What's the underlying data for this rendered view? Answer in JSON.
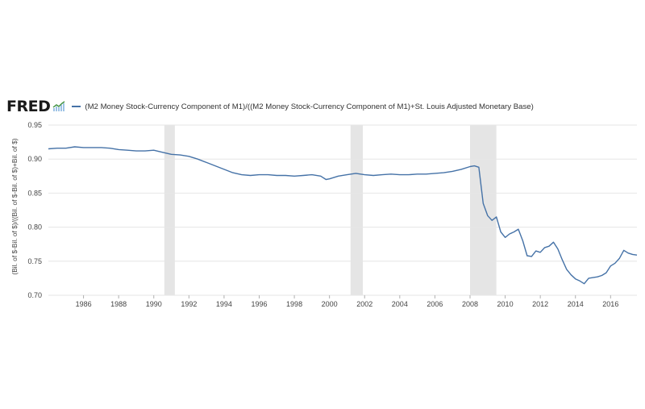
{
  "header": {
    "logo_text": "FRED",
    "logo_icon": "fred-line-chart-icon",
    "legend_label": "(M2 Money Stock-Currency Component of M1)/((M2 Money Stock-Currency Component of M1)+St. Louis Adjusted Monetary Base)"
  },
  "colors": {
    "series": "#4572a7",
    "recession": "#e5e5e5",
    "grid": "#e6e6e6"
  },
  "chart_data": {
    "type": "line",
    "title": "",
    "xlabel": "",
    "ylabel": "(Bil. of $-Bil. of $)/((Bil. of $-Bil. of $)+Bil. of $)",
    "xlim": [
      1984.0,
      2017.5
    ],
    "ylim": [
      0.7,
      0.95
    ],
    "x_ticks": [
      1986,
      1988,
      1990,
      1992,
      1994,
      1996,
      1998,
      2000,
      2002,
      2004,
      2006,
      2008,
      2010,
      2012,
      2014,
      2016
    ],
    "y_ticks": [
      "0.70",
      "0.75",
      "0.80",
      "0.85",
      "0.90",
      "0.95"
    ],
    "grid": true,
    "recessions": [
      [
        1990.6,
        1991.2
      ],
      [
        2001.2,
        2001.9
      ],
      [
        2008.0,
        2009.5
      ]
    ],
    "series": [
      {
        "name": "(M2 Money Stock-Currency Component of M1)/((M2 Money Stock-Currency Component of M1)+St. Louis Adjusted Monetary Base)",
        "x": [
          1984.0,
          1984.5,
          1985.0,
          1985.5,
          1986.0,
          1986.5,
          1987.0,
          1987.5,
          1988.0,
          1988.5,
          1989.0,
          1989.5,
          1990.0,
          1990.5,
          1991.0,
          1991.5,
          1992.0,
          1992.5,
          1993.0,
          1993.5,
          1994.0,
          1994.5,
          1995.0,
          1995.5,
          1996.0,
          1996.5,
          1997.0,
          1997.5,
          1998.0,
          1998.5,
          1999.0,
          1999.5,
          1999.8,
          2000.0,
          2000.5,
          2001.0,
          2001.5,
          2002.0,
          2002.5,
          2003.0,
          2003.5,
          2004.0,
          2004.5,
          2005.0,
          2005.5,
          2006.0,
          2006.5,
          2007.0,
          2007.5,
          2008.0,
          2008.25,
          2008.5,
          2008.75,
          2009.0,
          2009.25,
          2009.5,
          2009.75,
          2010.0,
          2010.25,
          2010.5,
          2010.75,
          2011.0,
          2011.25,
          2011.5,
          2011.75,
          2012.0,
          2012.25,
          2012.5,
          2012.75,
          2013.0,
          2013.25,
          2013.5,
          2013.75,
          2014.0,
          2014.25,
          2014.5,
          2014.75,
          2015.0,
          2015.25,
          2015.5,
          2015.75,
          2016.0,
          2016.25,
          2016.5,
          2016.75,
          2017.0,
          2017.25,
          2017.5
        ],
        "values": [
          0.915,
          0.916,
          0.916,
          0.918,
          0.917,
          0.917,
          0.917,
          0.916,
          0.914,
          0.913,
          0.912,
          0.912,
          0.913,
          0.91,
          0.907,
          0.906,
          0.904,
          0.9,
          0.895,
          0.89,
          0.885,
          0.88,
          0.877,
          0.876,
          0.877,
          0.877,
          0.876,
          0.876,
          0.875,
          0.876,
          0.877,
          0.875,
          0.87,
          0.871,
          0.875,
          0.877,
          0.879,
          0.877,
          0.876,
          0.877,
          0.878,
          0.877,
          0.877,
          0.878,
          0.878,
          0.879,
          0.88,
          0.882,
          0.885,
          0.889,
          0.89,
          0.888,
          0.835,
          0.817,
          0.81,
          0.815,
          0.793,
          0.785,
          0.79,
          0.793,
          0.797,
          0.78,
          0.758,
          0.757,
          0.765,
          0.763,
          0.77,
          0.772,
          0.778,
          0.768,
          0.752,
          0.738,
          0.73,
          0.724,
          0.721,
          0.717,
          0.725,
          0.726,
          0.727,
          0.729,
          0.733,
          0.743,
          0.747,
          0.754,
          0.766,
          0.762,
          0.76,
          0.759
        ]
      }
    ]
  }
}
